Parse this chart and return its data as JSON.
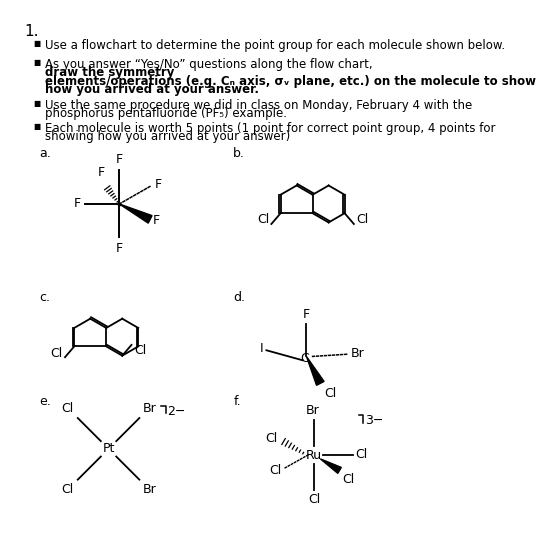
{
  "bg_color": "#ffffff",
  "title_num": "1.",
  "bullet1": "Use a flowchart to determine the point group for each molecule shown below.",
  "bullet2_pre": "As you answer “Yes/No” questions along the flow chart, ",
  "bullet2_bold1": "draw the symmetry",
  "bullet2_bold2": "elements/operations (e.g. Cₙ axis, σᵥ plane, etc.) on the molecule to show",
  "bullet2_bold3": "how you arrived at your answer.",
  "bullet3a": "Use the same procedure we did in class on Monday, February 4 with the",
  "bullet3b": "phosphorus pentafluoride (PF₅) example.",
  "bullet4a": "Each molecule is worth 5 points (1 point for correct point group, 4 points for",
  "bullet4b": "showing how you arrived at your answer)",
  "labels": [
    "a.",
    "b.",
    "c.",
    "d.",
    "e.",
    "f."
  ]
}
